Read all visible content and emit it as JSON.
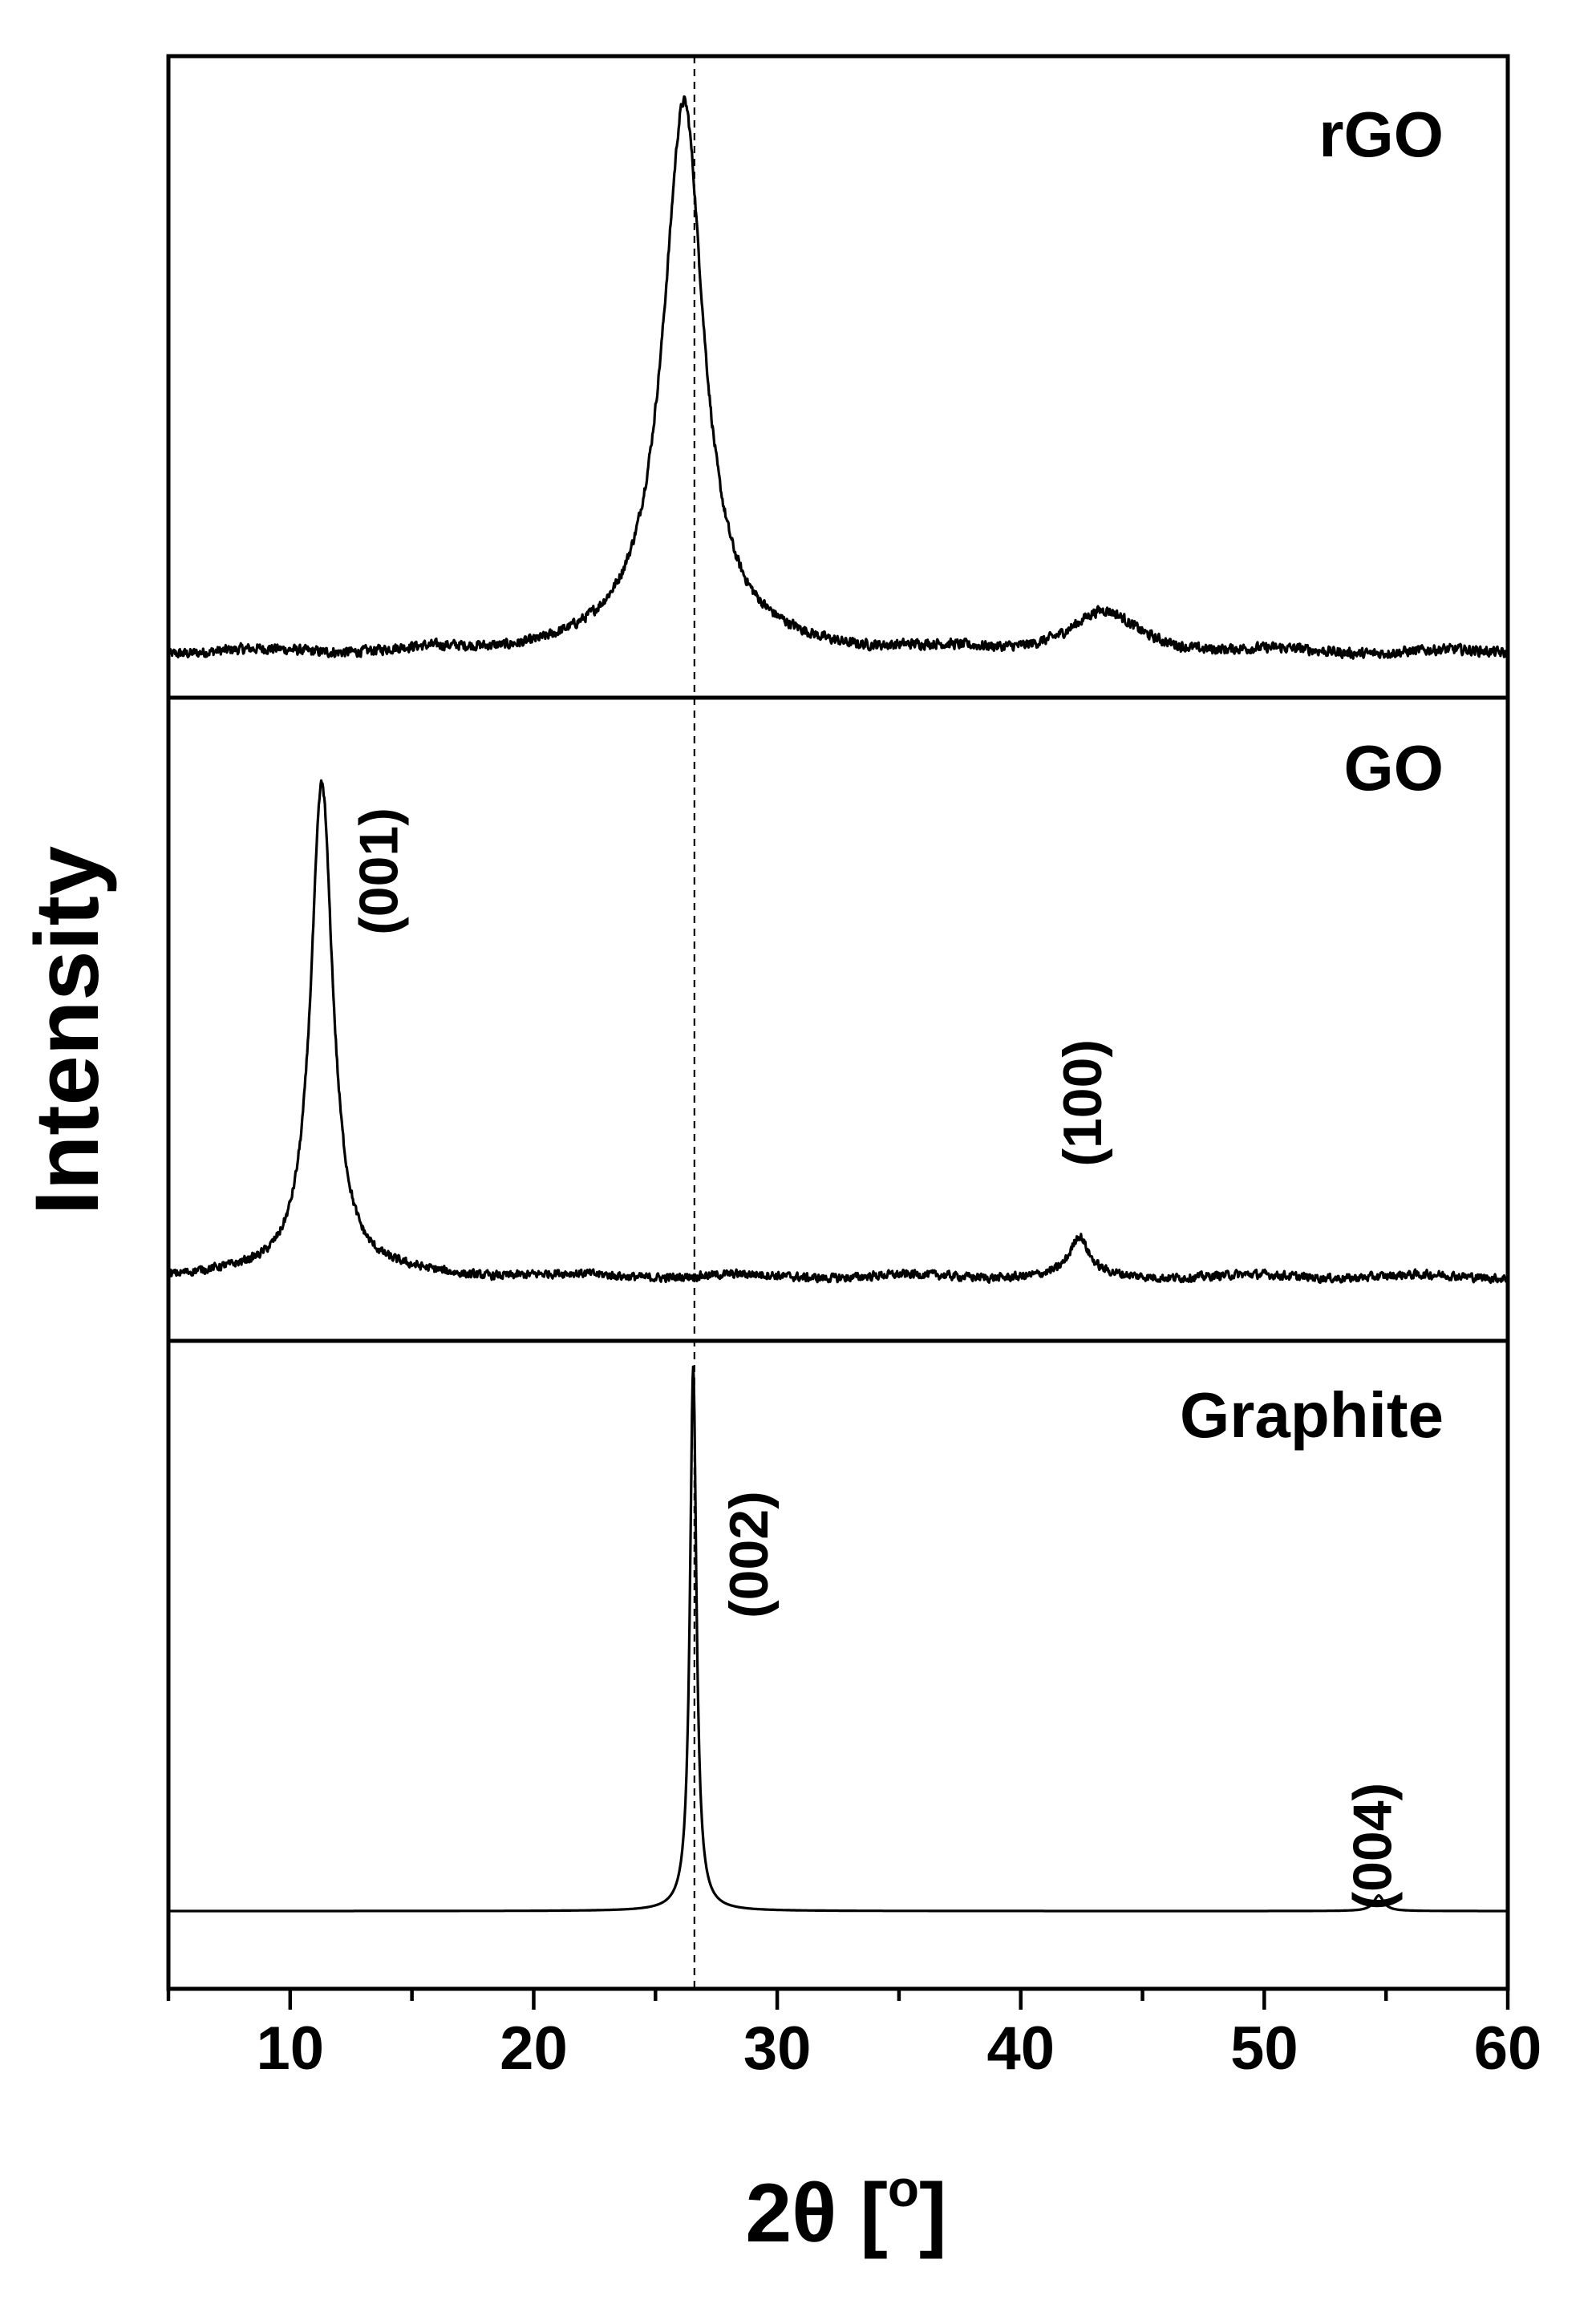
{
  "chart_data": {
    "type": "line",
    "xlabel_main": "2θ [",
    "xlabel_sup": "o",
    "xlabel_end": "]",
    "ylabel": "Intensity",
    "xlim": [
      5,
      60
    ],
    "x_ticks": [
      "10",
      "20",
      "30",
      "40",
      "50",
      "60"
    ],
    "x_tick_values": [
      10,
      20,
      30,
      40,
      50,
      60
    ],
    "reference_line_x": 26.6,
    "grid": false,
    "panels": [
      {
        "name": "rGO",
        "baseline": 0.07,
        "noise": 0.012,
        "peaks": [
          {
            "x": 26.2,
            "height": 0.78,
            "width": 0.95,
            "shape": "lorentz"
          },
          {
            "x": 25.6,
            "height": 0.1,
            "width": 1.3,
            "shape": "lorentz"
          },
          {
            "x": 43.4,
            "height": 0.06,
            "width": 1.6,
            "shape": "lorentz"
          }
        ],
        "annotations": []
      },
      {
        "name": "GO",
        "baseline": 0.1,
        "noise": 0.01,
        "peaks": [
          {
            "x": 11.3,
            "height": 0.77,
            "width": 0.55,
            "shape": "lorentz"
          },
          {
            "x": 42.4,
            "height": 0.06,
            "width": 0.45,
            "shape": "lorentz"
          }
        ],
        "annotations": [
          {
            "label": "(001)",
            "x": 14.4,
            "y": 0.73
          },
          {
            "label": "(100)",
            "x": 43.3,
            "y": 0.37
          }
        ]
      },
      {
        "name": "Graphite",
        "baseline": 0.12,
        "noise": 0.0,
        "peaks": [
          {
            "x": 26.55,
            "height": 0.84,
            "width": 0.16,
            "shape": "lorentz"
          },
          {
            "x": 54.7,
            "height": 0.024,
            "width": 0.25,
            "shape": "lorentz"
          }
        ],
        "annotations": [
          {
            "label": "(002)",
            "x": 29.6,
            "y": 0.67
          },
          {
            "label": "(004)",
            "x": 55.2,
            "y": 0.22
          }
        ]
      }
    ]
  }
}
